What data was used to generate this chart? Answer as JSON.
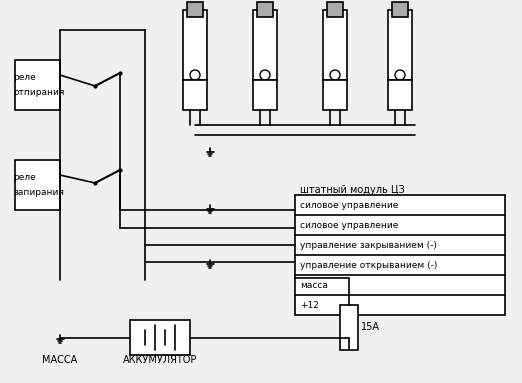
{
  "bg_color": "#f0f0f0",
  "line_color": "#000000",
  "box_fill": "#ffffff",
  "text_color": "#000000",
  "title": "",
  "relay1_label": [
    "реле",
    "отпирания"
  ],
  "relay2_label": [
    "реле",
    "запирания"
  ],
  "module_label": "штатный модуль ЦЗ",
  "connector_rows": [
    "силовое управление",
    "силовое управление",
    "управление закрыванием (-)",
    "управление открыванием (-)",
    "масса",
    "+12"
  ],
  "bottom_labels": [
    "МАССА",
    "АККУМУЛЯТОР"
  ],
  "fuse_label": "15А"
}
